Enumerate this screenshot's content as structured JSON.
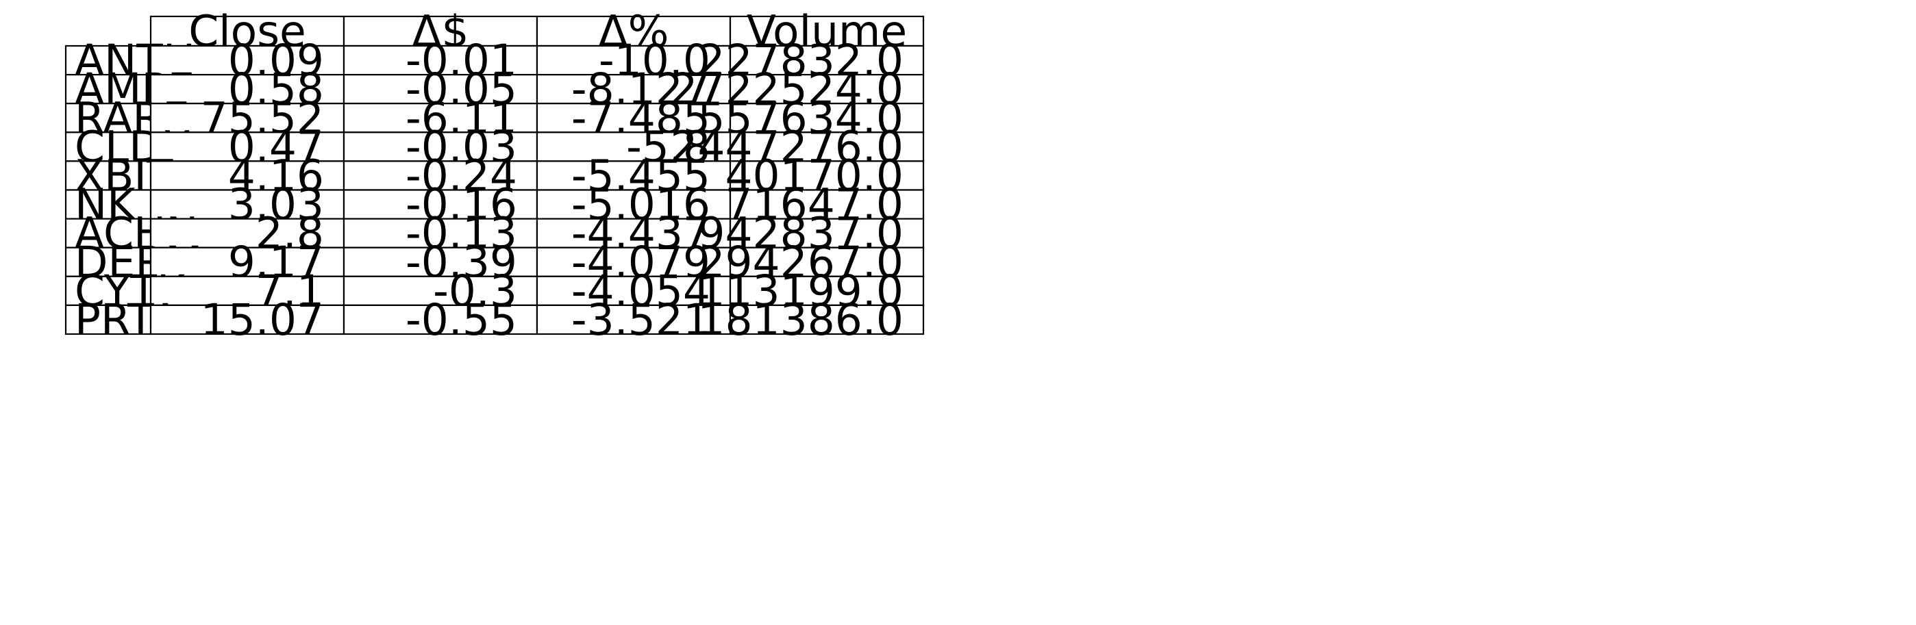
{
  "chart_data": {
    "type": "table",
    "columns": [
      "Close",
      "Δ$",
      "Δ%",
      "Volume"
    ],
    "rows": [
      {
        "label": "ANTH",
        "values": [
          "0.09",
          "-0.01",
          "-10.0",
          "227832.0"
        ]
      },
      {
        "label": "AMPE",
        "values": [
          "0.58",
          "-0.05",
          "-8.127",
          "2722524.0"
        ]
      },
      {
        "label": "RARE",
        "values": [
          "75.52",
          "-6.11",
          "-7.485",
          "557634.0"
        ]
      },
      {
        "label": "CLDX",
        "values": [
          "0.47",
          "-0.03",
          "-5.8",
          "2447276.0"
        ]
      },
      {
        "label": "XBIT",
        "values": [
          "4.16",
          "-0.24",
          "-5.455",
          "40170.0"
        ]
      },
      {
        "label": "NK",
        "values": [
          "3.03",
          "-0.16",
          "-5.016",
          "71647.0"
        ]
      },
      {
        "label": "ACHN",
        "values": [
          "2.8",
          "-0.13",
          "-4.437",
          "942837.0"
        ]
      },
      {
        "label": "DERM",
        "values": [
          "9.17",
          "-0.39",
          "-4.079",
          "294267.0"
        ]
      },
      {
        "label": "CYTK",
        "values": [
          "7.1",
          "-0.3",
          "-4.054",
          "113199.0"
        ]
      },
      {
        "label": "PRTA",
        "values": [
          "15.07",
          "-0.55",
          "-3.521",
          "181386.0"
        ]
      }
    ]
  }
}
